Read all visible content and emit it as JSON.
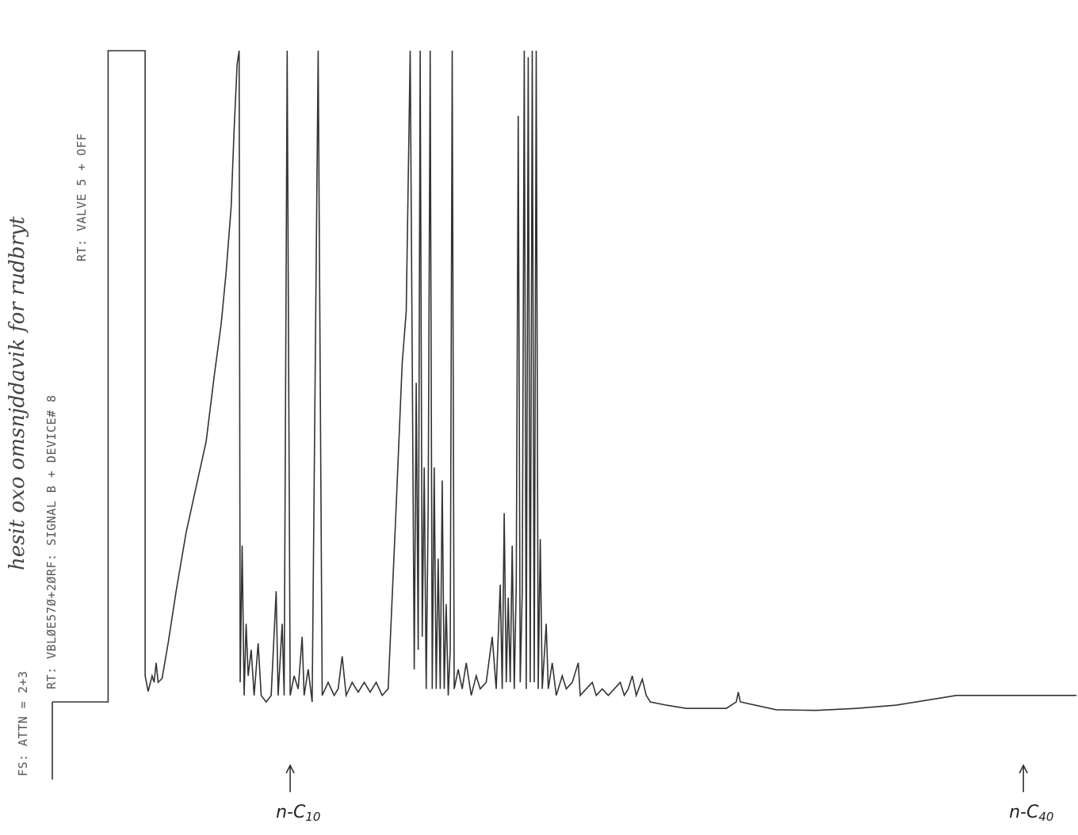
{
  "header": {
    "handwritten_note": "hesit oxo omsnjddavik for rudbryt",
    "printer_line_1": "RT: VBLØE57Ø+2ØRF: SIGNAL B + DEVICE# 8",
    "printer_line_2": "RT: VALVE 5 + OFF",
    "printer_line_3": "FS: ATTN = 2+3"
  },
  "markers": [
    {
      "name": "n-c10",
      "label": "n-C10",
      "retention_fraction": 0.214
    },
    {
      "name": "n-c40",
      "label": "n-C40",
      "retention_fraction": 0.947
    }
  ],
  "chart_data": {
    "type": "line",
    "title": "",
    "xlabel": "",
    "ylabel": "",
    "xlim": [
      0,
      1
    ],
    "ylim": [
      0,
      1
    ],
    "grid": false,
    "legend": "none",
    "description_series": "FID signal (normalized), retention fraction of run",
    "series": [
      {
        "name": "",
        "points": [
          [
            0.0,
            0.0
          ],
          [
            0.0,
            0.0
          ],
          [
            0.032,
            0.0
          ],
          [
            0.032,
            1.0
          ],
          [
            0.069,
            1.0
          ],
          [
            0.069,
            0.04
          ],
          [
            0.072,
            0.016
          ],
          [
            0.076,
            0.04
          ],
          [
            0.078,
            0.03
          ],
          [
            0.08,
            0.06
          ],
          [
            0.082,
            0.03
          ],
          [
            0.086,
            0.036
          ],
          [
            0.092,
            0.09
          ],
          [
            0.1,
            0.17
          ],
          [
            0.11,
            0.26
          ],
          [
            0.12,
            0.33
          ],
          [
            0.13,
            0.4
          ],
          [
            0.138,
            0.5
          ],
          [
            0.145,
            0.58
          ],
          [
            0.15,
            0.66
          ],
          [
            0.155,
            0.76
          ],
          [
            0.158,
            0.88
          ],
          [
            0.161,
            0.98
          ],
          [
            0.163,
            1.0
          ],
          [
            0.164,
            0.03
          ],
          [
            0.166,
            0.24
          ],
          [
            0.168,
            0.01
          ],
          [
            0.17,
            0.12
          ],
          [
            0.172,
            0.04
          ],
          [
            0.175,
            0.08
          ],
          [
            0.178,
            0.01
          ],
          [
            0.182,
            0.09
          ],
          [
            0.185,
            0.01
          ],
          [
            0.19,
            0.0
          ],
          [
            0.195,
            0.01
          ],
          [
            0.2,
            0.17
          ],
          [
            0.202,
            0.01
          ],
          [
            0.206,
            0.12
          ],
          [
            0.208,
            0.01
          ],
          [
            0.211,
            1.0
          ],
          [
            0.214,
            0.01
          ],
          [
            0.218,
            0.04
          ],
          [
            0.222,
            0.02
          ],
          [
            0.226,
            0.1
          ],
          [
            0.228,
            0.01
          ],
          [
            0.232,
            0.05
          ],
          [
            0.236,
            0.0
          ],
          [
            0.242,
            1.0
          ],
          [
            0.246,
            0.01
          ],
          [
            0.252,
            0.03
          ],
          [
            0.258,
            0.01
          ],
          [
            0.262,
            0.02
          ],
          [
            0.266,
            0.07
          ],
          [
            0.27,
            0.01
          ],
          [
            0.276,
            0.03
          ],
          [
            0.282,
            0.015
          ],
          [
            0.288,
            0.03
          ],
          [
            0.294,
            0.015
          ],
          [
            0.3,
            0.03
          ],
          [
            0.306,
            0.01
          ],
          [
            0.312,
            0.02
          ],
          [
            0.32,
            0.3
          ],
          [
            0.326,
            0.52
          ],
          [
            0.33,
            0.6
          ],
          [
            0.334,
            1.0
          ],
          [
            0.336,
            0.54
          ],
          [
            0.338,
            0.05
          ],
          [
            0.34,
            0.49
          ],
          [
            0.342,
            0.08
          ],
          [
            0.344,
            1.0
          ],
          [
            0.346,
            0.1
          ],
          [
            0.348,
            0.36
          ],
          [
            0.35,
            0.02
          ],
          [
            0.352,
            0.3
          ],
          [
            0.354,
            1.0
          ],
          [
            0.356,
            0.02
          ],
          [
            0.358,
            0.36
          ],
          [
            0.36,
            0.02
          ],
          [
            0.362,
            0.22
          ],
          [
            0.364,
            0.02
          ],
          [
            0.366,
            0.34
          ],
          [
            0.368,
            0.02
          ],
          [
            0.37,
            0.15
          ],
          [
            0.372,
            0.01
          ],
          [
            0.374,
            0.08
          ],
          [
            0.376,
            1.0
          ],
          [
            0.378,
            0.02
          ],
          [
            0.382,
            0.05
          ],
          [
            0.386,
            0.02
          ],
          [
            0.39,
            0.06
          ],
          [
            0.395,
            0.01
          ],
          [
            0.4,
            0.04
          ],
          [
            0.404,
            0.02
          ],
          [
            0.41,
            0.03
          ],
          [
            0.416,
            0.1
          ],
          [
            0.42,
            0.02
          ],
          [
            0.424,
            0.18
          ],
          [
            0.426,
            0.02
          ],
          [
            0.428,
            0.29
          ],
          [
            0.43,
            0.03
          ],
          [
            0.432,
            0.16
          ],
          [
            0.434,
            0.03
          ],
          [
            0.436,
            0.24
          ],
          [
            0.438,
            0.02
          ],
          [
            0.44,
            0.18
          ],
          [
            0.442,
            0.9
          ],
          [
            0.444,
            0.03
          ],
          [
            0.446,
            0.17
          ],
          [
            0.448,
            1.0
          ],
          [
            0.45,
            0.02
          ],
          [
            0.452,
            0.99
          ],
          [
            0.454,
            0.03
          ],
          [
            0.456,
            1.0
          ],
          [
            0.458,
            0.03
          ],
          [
            0.46,
            1.0
          ],
          [
            0.462,
            0.02
          ],
          [
            0.464,
            0.25
          ],
          [
            0.466,
            0.02
          ],
          [
            0.47,
            0.12
          ],
          [
            0.472,
            0.02
          ],
          [
            0.476,
            0.06
          ],
          [
            0.48,
            0.01
          ],
          [
            0.486,
            0.04
          ],
          [
            0.49,
            0.02
          ],
          [
            0.496,
            0.03
          ],
          [
            0.502,
            0.06
          ],
          [
            0.504,
            0.01
          ],
          [
            0.51,
            0.02
          ],
          [
            0.516,
            0.03
          ],
          [
            0.52,
            0.01
          ],
          [
            0.526,
            0.02
          ],
          [
            0.532,
            0.01
          ],
          [
            0.538,
            0.02
          ],
          [
            0.544,
            0.03
          ],
          [
            0.548,
            0.01
          ],
          [
            0.552,
            0.02
          ],
          [
            0.556,
            0.04
          ],
          [
            0.56,
            0.01
          ],
          [
            0.566,
            0.035
          ],
          [
            0.57,
            0.01
          ],
          [
            0.574,
            0.0
          ],
          [
            0.59,
            -0.005
          ],
          [
            0.61,
            -0.01
          ],
          [
            0.63,
            -0.01
          ],
          [
            0.65,
            -0.01
          ],
          [
            0.66,
            0.0
          ],
          [
            0.662,
            0.015
          ],
          [
            0.664,
            0.0
          ],
          [
            0.7,
            -0.012
          ],
          [
            0.74,
            -0.013
          ],
          [
            0.78,
            -0.01
          ],
          [
            0.82,
            -0.005
          ],
          [
            0.86,
            0.005
          ],
          [
            0.88,
            0.01
          ],
          [
            0.92,
            0.01
          ],
          [
            0.96,
            0.01
          ],
          [
            1.0,
            0.01
          ]
        ]
      }
    ]
  }
}
